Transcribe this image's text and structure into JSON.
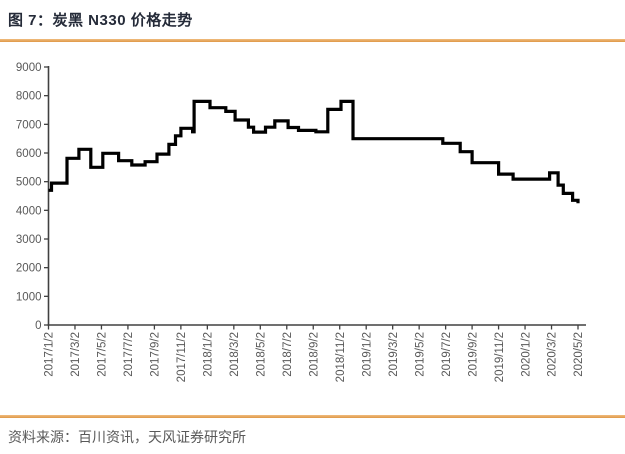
{
  "header": {
    "title": "图 7：炭黑 N330 价格走势"
  },
  "footer": {
    "source": "资料来源：百川资讯，天风证券研究所"
  },
  "colors": {
    "accent_rule": "#E09A4C",
    "title_text": "#252B39",
    "axis": "#404040",
    "tick_label": "#595959",
    "series_line": "#000000",
    "background": "#FFFFFF"
  },
  "chart_data": {
    "type": "line",
    "line_style": "step-after",
    "title": "炭黑 N330 价格走势",
    "xlabel": "",
    "ylabel": "",
    "grid": false,
    "legend": false,
    "ylim": [
      0,
      9000
    ],
    "y_ticks": [
      0,
      1000,
      2000,
      3000,
      4000,
      5000,
      6000,
      7000,
      8000,
      9000
    ],
    "x_tick_labels": [
      "2017/1/2",
      "2017/3/2",
      "2017/5/2",
      "2017/7/2",
      "2017/9/2",
      "2017/11/2",
      "2018/1/2",
      "2018/3/2",
      "2018/5/2",
      "2018/7/2",
      "2018/9/2",
      "2018/11/2",
      "2019/1/2",
      "2019/3/2",
      "2019/5/2",
      "2019/7/2",
      "2019/9/2",
      "2019/11/2",
      "2020/1/2",
      "2020/3/2",
      "2020/5/2"
    ],
    "x_months_span": 40,
    "series": [
      {
        "name": "炭黑 N330 价格",
        "color": "#000000",
        "points": [
          [
            "2017/1/2",
            4700
          ],
          [
            "2017/1/9",
            4950
          ],
          [
            "2017/2/14",
            5815
          ],
          [
            "2017/3/11",
            6130
          ],
          [
            "2017/4/8",
            5500
          ],
          [
            "2017/5/5",
            5990
          ],
          [
            "2017/6/11",
            5730
          ],
          [
            "2017/7/11",
            5580
          ],
          [
            "2017/8/11",
            5695
          ],
          [
            "2017/9/8",
            5960
          ],
          [
            "2017/10/5",
            6300
          ],
          [
            "2017/10/20",
            6600
          ],
          [
            "2017/11/2",
            6860
          ],
          [
            "2017/11/29",
            6740
          ],
          [
            "2017/12/2",
            7800
          ],
          [
            "2018/1/8",
            7580
          ],
          [
            "2018/2/14",
            7450
          ],
          [
            "2018/3/5",
            7150
          ],
          [
            "2018/4/5",
            6900
          ],
          [
            "2018/4/17",
            6730
          ],
          [
            "2018/5/14",
            6900
          ],
          [
            "2018/6/5",
            7120
          ],
          [
            "2018/7/5",
            6890
          ],
          [
            "2018/7/29",
            6790
          ],
          [
            "2018/9/8",
            6740
          ],
          [
            "2018/10/5",
            7520
          ],
          [
            "2018/11/5",
            7800
          ],
          [
            "2018/12/2",
            6500
          ],
          [
            "2019/6/26",
            6340
          ],
          [
            "2019/8/5",
            6045
          ],
          [
            "2019/9/2",
            5660
          ],
          [
            "2019/11/2",
            5265
          ],
          [
            "2019/12/5",
            5090
          ],
          [
            "2020/2/28",
            5310
          ],
          [
            "2020/3/17",
            4880
          ],
          [
            "2020/3/29",
            4590
          ],
          [
            "2020/4/20",
            4350
          ],
          [
            "2020/5/2",
            4250
          ]
        ]
      }
    ]
  }
}
